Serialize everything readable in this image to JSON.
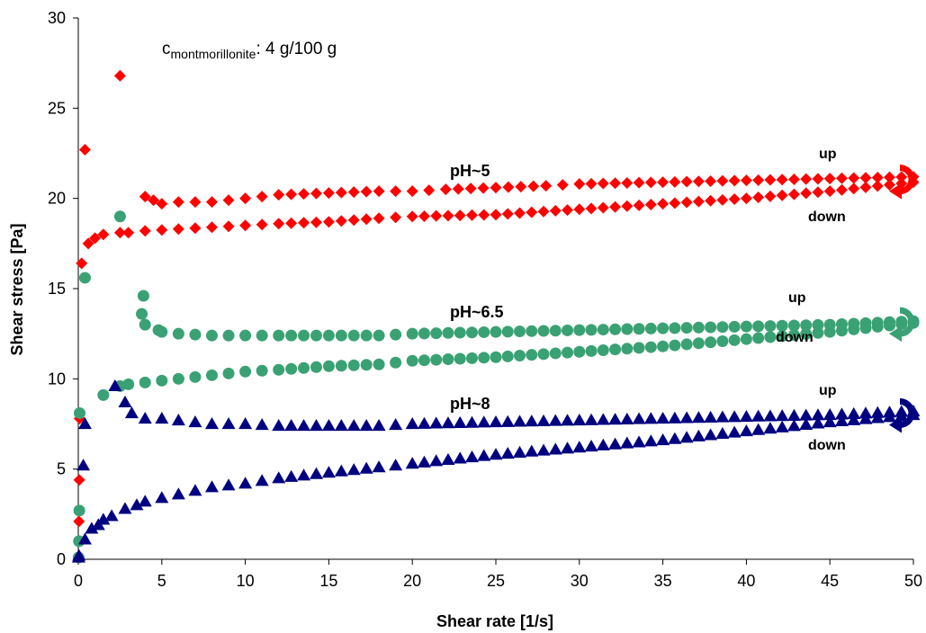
{
  "chart_data": {
    "type": "scatter",
    "xlabel": "Shear rate [1/s]",
    "ylabel": "Shear stress [Pa]",
    "xlim": [
      0,
      50
    ],
    "ylim": [
      0,
      30
    ],
    "xticks": [
      "0",
      "5",
      "10",
      "15",
      "20",
      "25",
      "30",
      "35",
      "40",
      "45",
      "50"
    ],
    "yticks": [
      "0",
      "5",
      "10",
      "15",
      "20",
      "25",
      "30"
    ],
    "grid": false,
    "annotation": {
      "main": "c",
      "subscript": "montmorillonite",
      "suffix": ": 4 g/100 g"
    },
    "series": [
      {
        "name": "pH~5",
        "marker": "diamond",
        "color": "#ff0000",
        "up_label": "up",
        "down_label": "down",
        "up": [
          [
            0.02,
            0.1
          ],
          [
            0.04,
            2.1
          ],
          [
            0.06,
            4.4
          ],
          [
            0.08,
            7.8
          ],
          [
            0.2,
            16.4
          ],
          [
            0.4,
            22.7
          ],
          [
            2.5,
            26.8
          ],
          [
            4,
            20.1
          ],
          [
            4.5,
            19.9
          ],
          [
            5,
            19.7
          ],
          [
            6,
            19.8
          ],
          [
            8,
            19.8
          ],
          [
            10,
            20.0
          ],
          [
            12,
            20.2
          ],
          [
            15,
            20.3
          ],
          [
            18,
            20.4
          ],
          [
            20,
            20.4
          ],
          [
            22,
            20.5
          ],
          [
            25,
            20.6
          ],
          [
            28,
            20.7
          ],
          [
            30,
            20.8
          ],
          [
            35,
            20.9
          ],
          [
            40,
            21.0
          ],
          [
            45,
            21.1
          ],
          [
            50,
            21.2
          ]
        ],
        "down": [
          [
            0.6,
            17.5
          ],
          [
            1,
            17.8
          ],
          [
            1.5,
            18.0
          ],
          [
            2.5,
            18.1
          ],
          [
            3,
            18.1
          ],
          [
            4,
            18.2
          ],
          [
            6,
            18.3
          ],
          [
            8,
            18.4
          ],
          [
            10,
            18.5
          ],
          [
            12,
            18.6
          ],
          [
            15,
            18.7
          ],
          [
            18,
            18.9
          ],
          [
            20,
            19.0
          ],
          [
            25,
            19.1
          ],
          [
            30,
            19.4
          ],
          [
            35,
            19.7
          ],
          [
            40,
            20.0
          ],
          [
            45,
            20.4
          ],
          [
            50,
            20.9
          ]
        ]
      },
      {
        "name": "pH~6.5",
        "marker": "circle",
        "color": "#3aa174",
        "up_label": "up",
        "down_label": "down",
        "up": [
          [
            0.02,
            0.1
          ],
          [
            0.04,
            1.0
          ],
          [
            0.06,
            2.7
          ],
          [
            0.08,
            8.1
          ],
          [
            0.4,
            15.6
          ],
          [
            2.5,
            19.0
          ],
          [
            3.8,
            13.6
          ],
          [
            3.9,
            14.6
          ],
          [
            4,
            13.0
          ],
          [
            4.8,
            12.7
          ],
          [
            5,
            12.6
          ],
          [
            6,
            12.5
          ],
          [
            8,
            12.4
          ],
          [
            10,
            12.4
          ],
          [
            12,
            12.4
          ],
          [
            15,
            12.4
          ],
          [
            18,
            12.4
          ],
          [
            20,
            12.5
          ],
          [
            25,
            12.6
          ],
          [
            30,
            12.7
          ],
          [
            35,
            12.8
          ],
          [
            40,
            12.9
          ],
          [
            45,
            13.0
          ],
          [
            50,
            13.2
          ]
        ],
        "down": [
          [
            1.5,
            9.1
          ],
          [
            2.5,
            9.6
          ],
          [
            3,
            9.7
          ],
          [
            4,
            9.8
          ],
          [
            5,
            9.9
          ],
          [
            6,
            10.0
          ],
          [
            8,
            10.2
          ],
          [
            10,
            10.4
          ],
          [
            12,
            10.5
          ],
          [
            15,
            10.7
          ],
          [
            18,
            10.8
          ],
          [
            20,
            11.0
          ],
          [
            25,
            11.2
          ],
          [
            30,
            11.5
          ],
          [
            35,
            11.8
          ],
          [
            40,
            12.2
          ],
          [
            45,
            12.6
          ],
          [
            50,
            13.1
          ]
        ]
      },
      {
        "name": "pH~8",
        "marker": "triangle",
        "color": "#000080",
        "up_label": "up",
        "down_label": "down",
        "up": [
          [
            0.02,
            0.1
          ],
          [
            0.04,
            0.2
          ],
          [
            0.3,
            5.2
          ],
          [
            0.4,
            7.5
          ],
          [
            2.2,
            9.6
          ],
          [
            2.8,
            8.7
          ],
          [
            3.2,
            8.1
          ],
          [
            4,
            7.8
          ],
          [
            5,
            7.8
          ],
          [
            6,
            7.7
          ],
          [
            8,
            7.5
          ],
          [
            10,
            7.5
          ],
          [
            12,
            7.4
          ],
          [
            15,
            7.4
          ],
          [
            18,
            7.4
          ],
          [
            20,
            7.5
          ],
          [
            25,
            7.6
          ],
          [
            30,
            7.7
          ],
          [
            35,
            7.8
          ],
          [
            40,
            7.9
          ],
          [
            45,
            8.0
          ],
          [
            50,
            8.2
          ]
        ],
        "down": [
          [
            0.4,
            1.1
          ],
          [
            0.8,
            1.7
          ],
          [
            1.2,
            1.9
          ],
          [
            1.5,
            2.2
          ],
          [
            2,
            2.4
          ],
          [
            2.8,
            2.8
          ],
          [
            3.5,
            3.0
          ],
          [
            4,
            3.2
          ],
          [
            5,
            3.4
          ],
          [
            6,
            3.6
          ],
          [
            8,
            4.0
          ],
          [
            10,
            4.2
          ],
          [
            12,
            4.5
          ],
          [
            15,
            4.8
          ],
          [
            18,
            5.1
          ],
          [
            20,
            5.3
          ],
          [
            25,
            5.8
          ],
          [
            30,
            6.2
          ],
          [
            35,
            6.6
          ],
          [
            40,
            7.1
          ],
          [
            45,
            7.6
          ],
          [
            50,
            8.0
          ]
        ]
      }
    ]
  }
}
